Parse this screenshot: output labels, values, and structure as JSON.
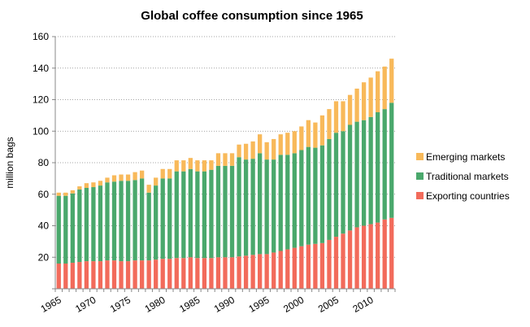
{
  "chart_data": {
    "type": "bar",
    "stacked": true,
    "title": "Global coffee consumption since 1965",
    "xlabel": "",
    "ylabel": "million bags",
    "ylim": [
      0,
      160
    ],
    "yticks": [
      "20",
      "40",
      "60",
      "80",
      "100",
      "120",
      "140",
      "160"
    ],
    "xticks": [
      "1965",
      "1970",
      "1975",
      "1980",
      "1985",
      "1990",
      "1995",
      "2000",
      "2005",
      "2010"
    ],
    "grid": "horizontal dotted",
    "legend_position": "right",
    "categories": [
      1965,
      1966,
      1967,
      1968,
      1969,
      1970,
      1971,
      1972,
      1973,
      1974,
      1975,
      1976,
      1977,
      1978,
      1979,
      1980,
      1981,
      1982,
      1983,
      1984,
      1985,
      1986,
      1987,
      1988,
      1989,
      1990,
      1991,
      1992,
      1993,
      1994,
      1995,
      1996,
      1997,
      1998,
      1999,
      2000,
      2001,
      2002,
      2003,
      2004,
      2005,
      2006,
      2007,
      2008,
      2009,
      2010,
      2011,
      2012,
      2013
    ],
    "series": [
      {
        "name": "Exporting countries",
        "color": "#f26b5b",
        "values": [
          16,
          16,
          16.5,
          17,
          17.5,
          17.5,
          17.5,
          18,
          18,
          17.5,
          17.5,
          18,
          18,
          18,
          18.5,
          19,
          19,
          19.5,
          19.5,
          20,
          19.5,
          19.5,
          19.5,
          20,
          20,
          20,
          20.5,
          21,
          21.5,
          22,
          22,
          23,
          24,
          25,
          26,
          27,
          28,
          28.5,
          29,
          31,
          33,
          35,
          37,
          39,
          40,
          41,
          42,
          44,
          45
        ]
      },
      {
        "name": "Traditional markets",
        "color": "#4aa86c",
        "values": [
          43,
          43,
          44,
          46,
          46.5,
          47,
          48,
          49.5,
          50,
          51,
          51,
          51,
          52,
          43,
          47,
          51,
          51,
          55,
          55,
          56,
          55,
          55,
          56,
          58,
          58,
          58,
          63,
          61,
          61,
          64,
          60,
          59,
          61,
          60,
          60,
          61,
          62,
          61,
          62,
          64,
          66,
          65,
          67,
          67,
          67,
          68,
          70,
          70,
          73
        ]
      },
      {
        "name": "Emerging markets",
        "color": "#f8b95a",
        "values": [
          2,
          2,
          2,
          2,
          3,
          3,
          3,
          3,
          4,
          4,
          4,
          5,
          5,
          5,
          5,
          6,
          6,
          7,
          7,
          7,
          7,
          7,
          6,
          8,
          8,
          8,
          8,
          10,
          11,
          12,
          11,
          13,
          13,
          14,
          14,
          15,
          17,
          16,
          19,
          19,
          20,
          19,
          19,
          21,
          24,
          25,
          26,
          27,
          28
        ]
      }
    ]
  }
}
